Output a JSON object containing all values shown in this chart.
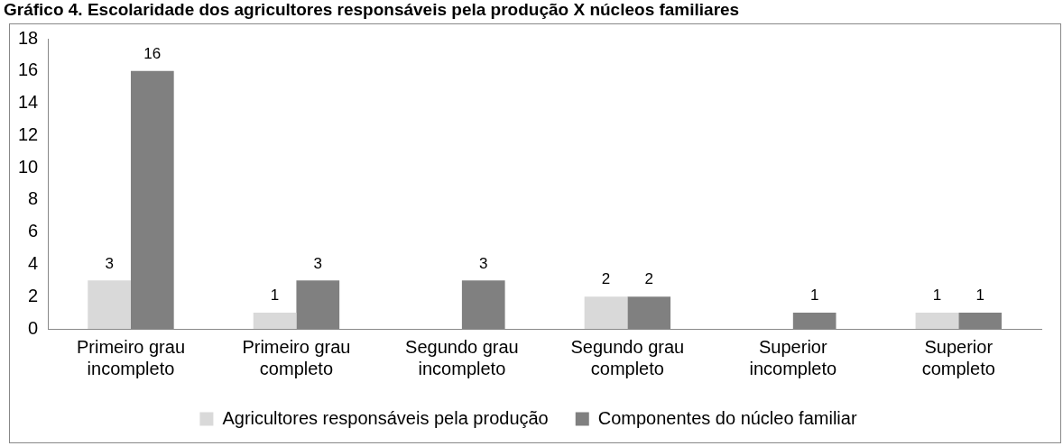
{
  "chart_data": {
    "type": "bar",
    "title": "Gráfico 4. Escolaridade dos agricultores responsáveis pela produção X núcleos familiares",
    "categories": [
      [
        "Primeiro grau",
        "incompleto"
      ],
      [
        "Primeiro grau",
        "completo"
      ],
      [
        "Segundo grau",
        "incompleto"
      ],
      [
        "Segundo grau",
        "completo"
      ],
      [
        "Superior",
        "incompleto"
      ],
      [
        "Superior",
        "completo"
      ]
    ],
    "series": [
      {
        "name": "Agricultores responsáveis pela produção",
        "color": "#d9d9d9",
        "values": [
          3,
          1,
          null,
          2,
          null,
          1
        ]
      },
      {
        "name": "Componentes do núcleo familiar",
        "color": "#808080",
        "values": [
          16,
          3,
          3,
          2,
          1,
          1
        ]
      }
    ],
    "ylim": [
      0,
      18
    ],
    "yticks": [
      0,
      2,
      4,
      6,
      8,
      10,
      12,
      14,
      16,
      18
    ],
    "grid": false,
    "legend": "bottom",
    "data_labels": true
  }
}
